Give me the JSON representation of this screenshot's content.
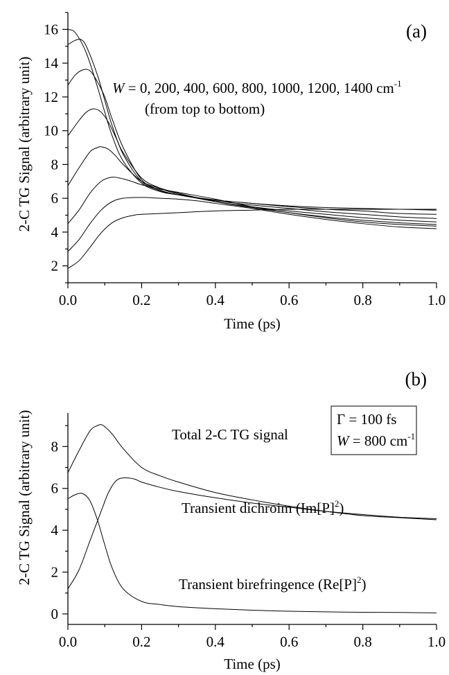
{
  "chart_data": [
    {
      "type": "line",
      "panel_label": "(a)",
      "xlabel": "Time (ps)",
      "ylabel": "2-C TG Signal (arbitrary unit)",
      "xlim": [
        0.0,
        1.0
      ],
      "ylim": [
        1,
        17
      ],
      "x_ticks": [
        "0.0",
        "0.2",
        "0.4",
        "0.6",
        "0.8",
        "1.0"
      ],
      "y_ticks": [
        "2",
        "4",
        "6",
        "8",
        "10",
        "12",
        "14",
        "16"
      ],
      "annotation_W_symbol": "W",
      "annotation_line1": " = 0, 200, 400, 600, 800, 1000, 1200, 1400 cm",
      "annotation_line1_sup": "-1",
      "annotation_line2": "(from top to bottom)",
      "series": [
        {
          "x": [
            0,
            0.02,
            0.05,
            0.08,
            0.1,
            0.12,
            0.15,
            0.2,
            0.25,
            0.3,
            0.4,
            0.5,
            0.6,
            0.7,
            0.8,
            0.9,
            1.0
          ],
          "values": [
            16.0,
            15.8,
            14.6,
            12.6,
            11.1,
            9.7,
            8.2,
            6.9,
            6.4,
            6.2,
            5.9,
            5.7,
            5.55,
            5.45,
            5.4,
            5.35,
            5.3
          ]
        },
        {
          "x": [
            0,
            0.02,
            0.035,
            0.05,
            0.08,
            0.1,
            0.12,
            0.15,
            0.2,
            0.25,
            0.3,
            0.4,
            0.5,
            0.6,
            0.7,
            0.8,
            0.9,
            1.0
          ],
          "values": [
            15.1,
            15.35,
            15.4,
            15.0,
            13.3,
            11.8,
            10.3,
            8.6,
            7.0,
            6.45,
            6.2,
            5.9,
            5.7,
            5.5,
            5.35,
            5.25,
            5.1,
            5.05
          ]
        },
        {
          "x": [
            0,
            0.02,
            0.04,
            0.06,
            0.08,
            0.1,
            0.12,
            0.15,
            0.2,
            0.25,
            0.3,
            0.4,
            0.5,
            0.6,
            0.7,
            0.8,
            0.9,
            1.0
          ],
          "values": [
            12.7,
            13.3,
            13.6,
            13.55,
            12.9,
            12.0,
            10.7,
            9.0,
            7.1,
            6.5,
            6.2,
            5.85,
            5.6,
            5.4,
            5.2,
            5.05,
            4.9,
            4.8
          ]
        },
        {
          "x": [
            0,
            0.03,
            0.05,
            0.07,
            0.09,
            0.11,
            0.13,
            0.15,
            0.2,
            0.25,
            0.3,
            0.4,
            0.5,
            0.6,
            0.7,
            0.8,
            0.9,
            1.0
          ],
          "values": [
            9.7,
            10.6,
            11.1,
            11.3,
            11.1,
            10.5,
            9.6,
            8.7,
            7.2,
            6.6,
            6.25,
            5.8,
            5.5,
            5.25,
            5.05,
            4.85,
            4.7,
            4.6
          ]
        },
        {
          "x": [
            0,
            0.03,
            0.06,
            0.08,
            0.09,
            0.11,
            0.13,
            0.15,
            0.2,
            0.25,
            0.3,
            0.4,
            0.5,
            0.6,
            0.7,
            0.8,
            0.9,
            1.0
          ],
          "values": [
            6.75,
            7.8,
            8.75,
            9.0,
            9.05,
            8.9,
            8.5,
            8.0,
            7.0,
            6.6,
            6.3,
            5.8,
            5.45,
            5.15,
            4.9,
            4.7,
            4.55,
            4.45
          ]
        },
        {
          "x": [
            0,
            0.03,
            0.06,
            0.09,
            0.12,
            0.15,
            0.18,
            0.2,
            0.25,
            0.3,
            0.4,
            0.5,
            0.6,
            0.7,
            0.8,
            0.9,
            1.0
          ],
          "values": [
            4.5,
            5.3,
            6.3,
            7.0,
            7.25,
            7.15,
            6.95,
            6.8,
            6.55,
            6.35,
            5.95,
            5.5,
            5.15,
            4.85,
            4.6,
            4.45,
            4.35
          ]
        },
        {
          "x": [
            0,
            0.03,
            0.06,
            0.09,
            0.12,
            0.15,
            0.2,
            0.25,
            0.3,
            0.35,
            0.4,
            0.5,
            0.6,
            0.7,
            0.8,
            0.9,
            1.0
          ],
          "values": [
            2.85,
            3.55,
            4.5,
            5.3,
            5.8,
            6.0,
            6.05,
            6.0,
            5.95,
            5.85,
            5.7,
            5.4,
            5.05,
            4.75,
            4.5,
            4.3,
            4.2
          ]
        },
        {
          "x": [
            0,
            0.03,
            0.06,
            0.09,
            0.12,
            0.15,
            0.18,
            0.2,
            0.3,
            0.4,
            0.5,
            0.6,
            0.7,
            0.8,
            0.9,
            1.0
          ],
          "values": [
            1.85,
            2.3,
            3.1,
            3.95,
            4.55,
            4.85,
            5.0,
            5.05,
            5.15,
            5.25,
            5.3,
            5.35,
            5.35,
            5.35,
            5.35,
            5.35
          ]
        }
      ]
    },
    {
      "type": "line",
      "panel_label": "(b)",
      "xlabel": "Time (ps)",
      "ylabel": "2-C TG Signal (arbitrary unit)",
      "xlim": [
        0.0,
        1.0
      ],
      "ylim": [
        -0.5,
        9.6
      ],
      "x_ticks": [
        "0.0",
        "0.2",
        "0.4",
        "0.6",
        "0.8",
        "1.0"
      ],
      "y_ticks": [
        "0",
        "2",
        "4",
        "6",
        "8"
      ],
      "legend_line1": "Γ = 100 fs",
      "legend_W_symbol": "W",
      "legend_line2": " = 800 cm",
      "legend_line2_sup": "-1",
      "labels": {
        "total": "Total 2-C TG signal",
        "dichroism": "Transient dichroim (Im[P]",
        "dichroism_sup": "2",
        "dichroism_end": ")",
        "birefringence": "Transient birefringence (Re[P]",
        "birefringence_sup": "2",
        "birefringence_end": ")"
      },
      "series": [
        {
          "name": "Total 2-C TG signal",
          "x": [
            0,
            0.03,
            0.06,
            0.08,
            0.09,
            0.1,
            0.12,
            0.15,
            0.2,
            0.25,
            0.3,
            0.4,
            0.5,
            0.6,
            0.7,
            0.8,
            0.9,
            1.0
          ],
          "values": [
            6.75,
            7.8,
            8.75,
            9.0,
            9.05,
            8.95,
            8.6,
            7.9,
            7.0,
            6.6,
            6.3,
            5.8,
            5.45,
            5.15,
            4.9,
            4.7,
            4.6,
            4.5
          ]
        },
        {
          "name": "Transient dichroim (Im[P]2)",
          "x": [
            0,
            0.03,
            0.06,
            0.09,
            0.11,
            0.13,
            0.15,
            0.18,
            0.2,
            0.25,
            0.3,
            0.4,
            0.5,
            0.6,
            0.7,
            0.8,
            0.9,
            1.0
          ],
          "values": [
            1.2,
            2.1,
            3.5,
            4.9,
            5.8,
            6.35,
            6.5,
            6.45,
            6.3,
            6.05,
            5.85,
            5.55,
            5.3,
            5.1,
            4.9,
            4.75,
            4.62,
            4.55
          ]
        },
        {
          "name": "Transient birefringence (Re[P]2)",
          "x": [
            0,
            0.02,
            0.04,
            0.06,
            0.08,
            0.1,
            0.12,
            0.15,
            0.2,
            0.25,
            0.3,
            0.4,
            0.5,
            0.6,
            0.7,
            0.8,
            0.9,
            1.0
          ],
          "values": [
            5.5,
            5.7,
            5.75,
            5.4,
            4.5,
            3.3,
            2.2,
            1.2,
            0.6,
            0.45,
            0.35,
            0.25,
            0.18,
            0.13,
            0.1,
            0.08,
            0.07,
            0.05
          ]
        }
      ]
    }
  ]
}
